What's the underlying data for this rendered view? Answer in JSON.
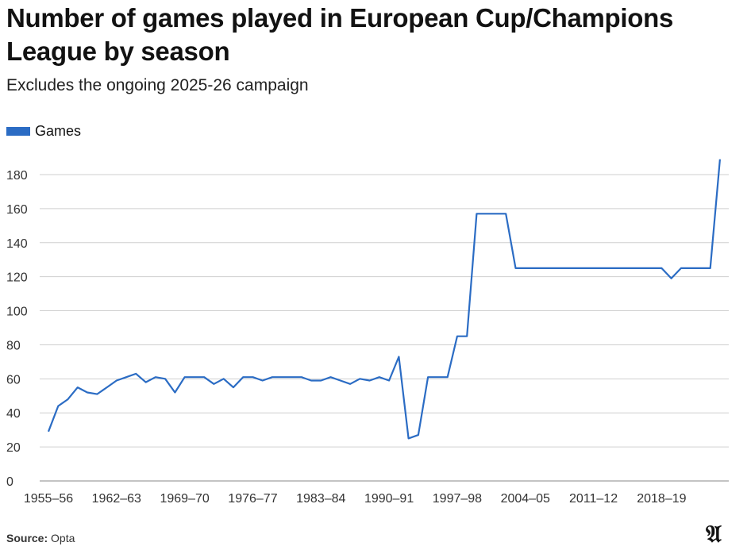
{
  "chart_data": {
    "type": "line",
    "title": "Number of games played in European Cup/Champions League by season",
    "subtitle": "Excludes the ongoing 2025-26 campaign",
    "xlabel": "",
    "ylabel": "",
    "ylim": [
      0,
      190
    ],
    "yticks": [
      0,
      20,
      40,
      60,
      80,
      100,
      120,
      140,
      160,
      180
    ],
    "xtick_labels": [
      "1955–56",
      "1962–63",
      "1969–70",
      "1976–77",
      "1983–84",
      "1990–91",
      "1997–98",
      "2004–05",
      "2011–12",
      "2018–19"
    ],
    "grid": true,
    "legend_placement": "top-left",
    "categories": [
      "1955–56",
      "1956–57",
      "1957–58",
      "1958–59",
      "1959–60",
      "1960–61",
      "1961–62",
      "1962–63",
      "1963–64",
      "1964–65",
      "1965–66",
      "1966–67",
      "1967–68",
      "1968–69",
      "1969–70",
      "1970–71",
      "1971–72",
      "1972–73",
      "1973–74",
      "1974–75",
      "1975–76",
      "1976–77",
      "1977–78",
      "1978–79",
      "1979–80",
      "1980–81",
      "1981–82",
      "1982–83",
      "1983–84",
      "1984–85",
      "1985–86",
      "1986–87",
      "1987–88",
      "1988–89",
      "1989–90",
      "1990–91",
      "1991–92",
      "1992–93",
      "1993–94",
      "1994–95",
      "1995–96",
      "1996–97",
      "1997–98",
      "1998–99",
      "1999–00",
      "2000–01",
      "2001–02",
      "2002–03",
      "2003–04",
      "2004–05",
      "2005–06",
      "2006–07",
      "2007–08",
      "2008–09",
      "2009–10",
      "2010–11",
      "2011–12",
      "2012–13",
      "2013–14",
      "2014–15",
      "2015–16",
      "2016–17",
      "2017–18",
      "2018–19",
      "2019–20",
      "2020–21",
      "2021–22",
      "2022–23",
      "2023–24",
      "2024–25"
    ],
    "series": [
      {
        "name": "Games",
        "color": "#2b6cc4",
        "values": [
          29,
          44,
          48,
          55,
          52,
          51,
          55,
          59,
          61,
          63,
          58,
          61,
          60,
          52,
          61,
          61,
          61,
          57,
          60,
          55,
          61,
          61,
          59,
          61,
          61,
          61,
          61,
          59,
          59,
          61,
          59,
          57,
          60,
          59,
          61,
          59,
          73,
          25,
          27,
          61,
          61,
          61,
          85,
          85,
          157,
          157,
          157,
          157,
          125,
          125,
          125,
          125,
          125,
          125,
          125,
          125,
          125,
          125,
          125,
          125,
          125,
          125,
          125,
          125,
          119,
          125,
          125,
          125,
          125,
          189
        ]
      }
    ]
  },
  "footer": {
    "source_label": "Source:",
    "source_value": "Opta"
  },
  "logo": {
    "text": "A"
  }
}
